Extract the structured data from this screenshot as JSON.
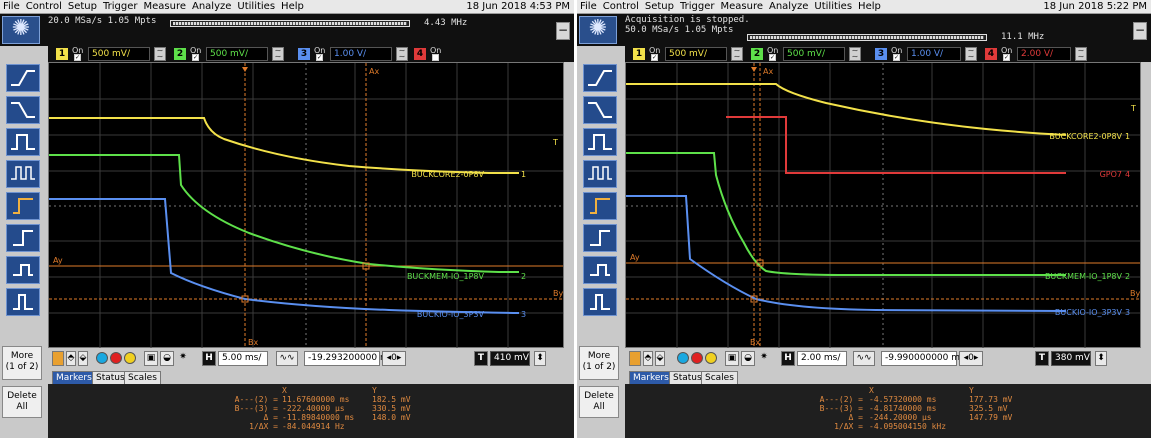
{
  "scopes": [
    {
      "menu": [
        "File",
        "Control",
        "Setup",
        "Trigger",
        "Measure",
        "Analyze",
        "Utilities",
        "Help"
      ],
      "datetime": "18 Jun 2018  4:53 PM",
      "acq_status": "",
      "acq_settings": "20.0 MSa/s   1.05 Mpts",
      "bandwidth": "4.43 MHz",
      "channels": [
        {
          "num": "1",
          "on": "On",
          "scale": "500 mV/",
          "color": "#f2e14a",
          "enabled": true
        },
        {
          "num": "2",
          "on": "On",
          "scale": "500 mV/",
          "color": "#5ee04a",
          "enabled": true
        },
        {
          "num": "3",
          "on": "On",
          "scale": "1.00 V/",
          "color": "#5a8ff0",
          "enabled": true
        },
        {
          "num": "4",
          "on": "On",
          "scale": "",
          "color": "#e03a3a",
          "enabled": false
        }
      ],
      "trace_labels": [
        "BUCKCORE2-0P8V",
        "BUCKMEM-IO_1P8V",
        "BUCKIO-IO_3P3V"
      ],
      "trace_markers": [
        "1",
        "2",
        "3"
      ],
      "cursor_labels": {
        "ax": "Ax",
        "bx": "Bx",
        "ay": "Ay",
        "by": "By",
        "t": "T"
      },
      "timebase": "5.00 ms/",
      "delay": "-19.293200000 ms",
      "trigger_level": "410 mV",
      "tabs": [
        "Markers",
        "Status",
        "Scales"
      ],
      "markers": {
        "header_x": "X",
        "header_y": "Y",
        "rows": [
          {
            "label": "A---(2) =",
            "x": "11.67600000 ms",
            "y": "182.5 mV"
          },
          {
            "label": "B---(3) =",
            "x": "-222.40000 µs",
            "y": "330.5 mV"
          },
          {
            "label": "Δ =",
            "x": "-11.89840000 ms",
            "y": "148.0 mV"
          },
          {
            "label": "1/ΔX =",
            "x": "-84.044914 Hz",
            "y": ""
          }
        ]
      },
      "more_label": "More\n(1 of 2)",
      "delete_label": "Delete\nAll"
    },
    {
      "menu": [
        "File",
        "Control",
        "Setup",
        "Trigger",
        "Measure",
        "Analyze",
        "Utilities",
        "Help"
      ],
      "datetime": "18 Jun 2018  5:22 PM",
      "acq_status": "Acquisition is stopped.",
      "acq_settings": "50.0 MSa/s   1.05 Mpts",
      "bandwidth": "11.1 MHz",
      "channels": [
        {
          "num": "1",
          "on": "On",
          "scale": "500 mV/",
          "color": "#f2e14a",
          "enabled": true
        },
        {
          "num": "2",
          "on": "On",
          "scale": "500 mV/",
          "color": "#5ee04a",
          "enabled": true
        },
        {
          "num": "3",
          "on": "On",
          "scale": "1.00 V/",
          "color": "#5a8ff0",
          "enabled": true
        },
        {
          "num": "4",
          "on": "On",
          "scale": "2.00 V/",
          "color": "#e03a3a",
          "enabled": true
        }
      ],
      "trace_labels": [
        "BUCKCORE2-0P8V",
        "GPO7",
        "BUCKMEM-IO_1P8V",
        "BUCKIO-IO_3P3V"
      ],
      "trace_markers": [
        "1",
        "4",
        "2",
        "3"
      ],
      "cursor_labels": {
        "ax": "Ax",
        "bx": "Bx",
        "ay": "Ay",
        "by": "By",
        "t": "T"
      },
      "timebase": "2.00 ms/",
      "delay": "-9.990000000 ms",
      "trigger_level": "380 mV",
      "tabs": [
        "Markers",
        "Status",
        "Scales"
      ],
      "markers": {
        "header_x": "X",
        "header_y": "Y",
        "rows": [
          {
            "label": "A---(2) =",
            "x": "-4.57320000 ms",
            "y": "177.73 mV"
          },
          {
            "label": "B---(3) =",
            "x": "-4.81740000 ms",
            "y": "325.5 mV"
          },
          {
            "label": "Δ =",
            "x": "-244.20000 µs",
            "y": "147.79 mV"
          },
          {
            "label": "1/ΔX =",
            "x": "-4.095004150 kHz",
            "y": ""
          }
        ]
      },
      "more_label": "More\n(1 of 2)",
      "delete_label": "Delete\nAll"
    }
  ]
}
